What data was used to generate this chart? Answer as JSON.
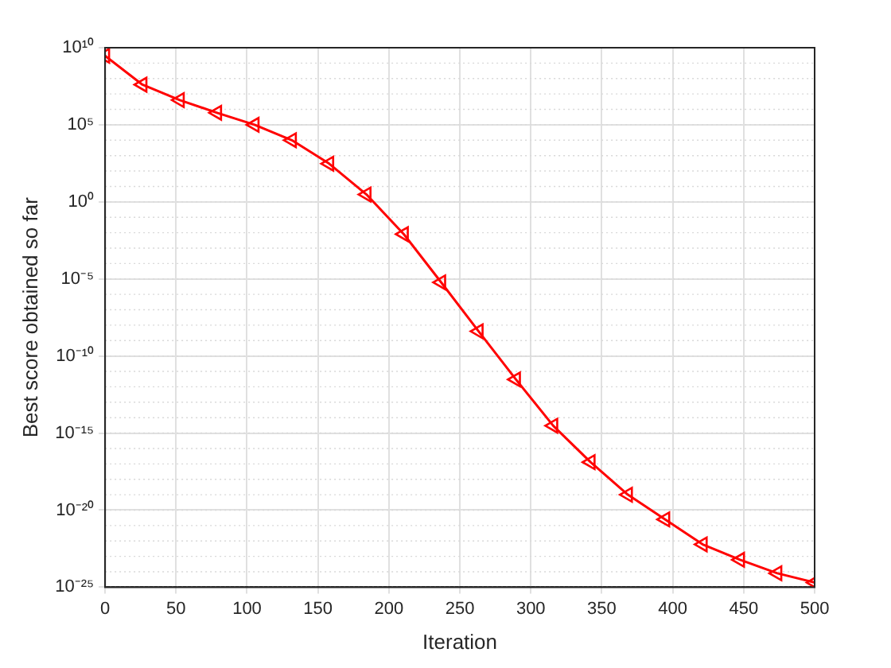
{
  "chart_data": {
    "type": "line",
    "xlabel": "Iteration",
    "ylabel": "Best score obtained so far",
    "x": [
      0,
      26.3,
      52.6,
      78.9,
      105.3,
      131.6,
      157.9,
      184.2,
      210.5,
      236.8,
      263.2,
      289.5,
      315.8,
      342.1,
      368.4,
      394.7,
      421.1,
      447.4,
      473.7,
      500
    ],
    "series": [
      {
        "color": "#ff0000",
        "values": [
          3000000000.0,
          40000000.0,
          4000000.0,
          600000.0,
          100000.0,
          10000.0,
          300.0,
          3,
          0.008,
          6e-06,
          4e-09,
          3e-12,
          3e-15,
          1.3e-17,
          1e-19,
          2.5e-21,
          6e-23,
          6e-24,
          8e-25,
          2e-25
        ]
      }
    ],
    "xlim": [
      0,
      500
    ],
    "xticks": [
      0,
      50,
      100,
      150,
      200,
      250,
      300,
      350,
      400,
      450,
      500
    ],
    "ylim": [
      1e-25,
      10000000000.0
    ],
    "yticks": [
      {
        "value": 1e-25,
        "label": "10⁻²⁵"
      },
      {
        "value": 1e-20,
        "label": "10⁻²⁰"
      },
      {
        "value": 1e-15,
        "label": "10⁻¹⁵"
      },
      {
        "value": 1e-10,
        "label": "10⁻¹⁰"
      },
      {
        "value": 1e-05,
        "label": "10⁻⁵"
      },
      {
        "value": 1,
        "label": "10⁰"
      },
      {
        "value": 100000.0,
        "label": "10⁵"
      },
      {
        "value": 10000000000.0,
        "label": "10¹⁰"
      }
    ],
    "log": "y",
    "grid": true,
    "marker": "triangle",
    "line_style": "solid",
    "legend": false
  }
}
